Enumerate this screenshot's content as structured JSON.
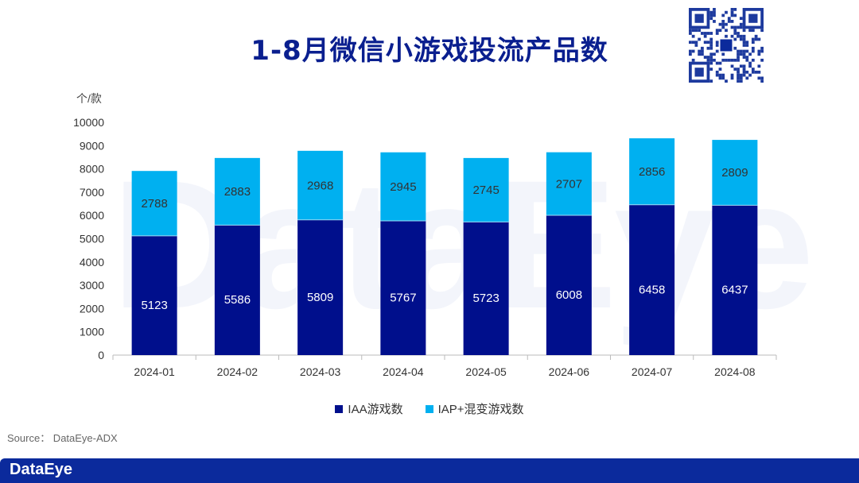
{
  "title": "1-8月微信小游戏投流产品数",
  "watermark": "DataEye",
  "source": "Source：  DataEye-ADX",
  "footer_logo": "DataEye",
  "colors": {
    "iaa": "#000f8c",
    "iap": "#00b0f0",
    "title": "#0a1f8f",
    "footer": "#0b2a9c"
  },
  "chart_data": {
    "type": "bar",
    "stacked": true,
    "title": "1-8月微信小游戏投流产品数",
    "ylabel": "个/款",
    "xlabel": "",
    "ylim": [
      0,
      10000
    ],
    "yticks": [
      0,
      1000,
      2000,
      3000,
      4000,
      5000,
      6000,
      7000,
      8000,
      9000,
      10000
    ],
    "categories": [
      "2024-01",
      "2024-02",
      "2024-03",
      "2024-04",
      "2024-05",
      "2024-06",
      "2024-07",
      "2024-08"
    ],
    "series": [
      {
        "name": "IAA游戏数",
        "color": "#000f8c",
        "values": [
          5123,
          5586,
          5809,
          5767,
          5723,
          6008,
          6458,
          6437
        ]
      },
      {
        "name": "IAP+混变游戏数",
        "color": "#00b0f0",
        "values": [
          2788,
          2883,
          2968,
          2945,
          2745,
          2707,
          2856,
          2809
        ]
      }
    ],
    "legend": "bottom-center",
    "grid": false
  }
}
